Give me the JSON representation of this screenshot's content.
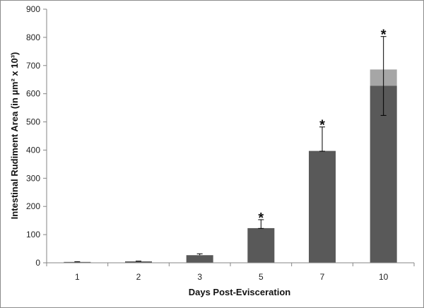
{
  "chart_data": {
    "type": "bar",
    "xlabel": "Days Post-Evisceration",
    "ylabel": "Intestinal Rudiment Area (in µm² x 10³)",
    "ylim": [
      0,
      900
    ],
    "yticks": [
      0,
      100,
      200,
      300,
      400,
      500,
      600,
      700,
      800,
      900
    ],
    "categories": [
      "1",
      "2",
      "3",
      "5",
      "7",
      "10"
    ],
    "values": [
      3,
      5,
      27,
      123,
      397,
      628
    ],
    "stacked_top": [
      0,
      0,
      0,
      0,
      0,
      58
    ],
    "error_upper": [
      4,
      6,
      32,
      153,
      482,
      803
    ],
    "error_lower": [
      null,
      null,
      null,
      122,
      396,
      523
    ],
    "significant": [
      false,
      false,
      false,
      true,
      true,
      true
    ],
    "significance_marker": "*",
    "grid": false,
    "colors": {
      "bar": "#595959",
      "bar_top": "#a6a6a6",
      "axis": "#868686",
      "error": "#000000"
    }
  }
}
